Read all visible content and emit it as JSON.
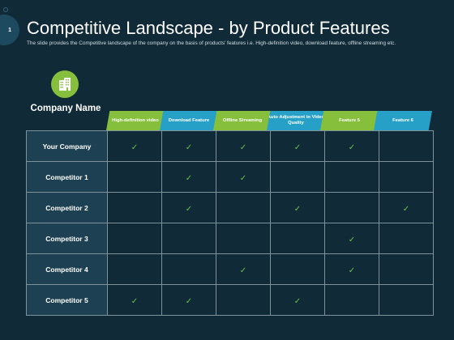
{
  "slide": {
    "number": "1",
    "title": "Competitive Landscape - by Product Features",
    "subtitle": "The slide provides the Competitive landscape of the company on the basis of products' features i.e. High-definition video, download feature, offline streaming etc."
  },
  "table": {
    "company_heading": "Company Name",
    "company_icon": "building-icon",
    "check_glyph": "✓",
    "features": [
      {
        "label": "High-definition video",
        "color": "#86bf3b"
      },
      {
        "label": "Download Feature",
        "color": "#27a0c8"
      },
      {
        "label": "Offline Streaming",
        "color": "#86bf3b"
      },
      {
        "label": "Auto Adjustment in Video Quality",
        "color": "#27a0c8"
      },
      {
        "label": "Feature 5",
        "color": "#86bf3b"
      },
      {
        "label": "Feature 6",
        "color": "#27a0c8"
      }
    ],
    "rows": [
      {
        "company": "Your Company",
        "checks": [
          true,
          true,
          true,
          true,
          true,
          false
        ]
      },
      {
        "company": "Competitor 1",
        "checks": [
          false,
          true,
          true,
          false,
          false,
          false
        ]
      },
      {
        "company": "Competitor 2",
        "checks": [
          false,
          true,
          false,
          true,
          false,
          true
        ]
      },
      {
        "company": "Competitor 3",
        "checks": [
          false,
          false,
          false,
          false,
          true,
          false
        ]
      },
      {
        "company": "Competitor 4",
        "checks": [
          false,
          false,
          true,
          false,
          true,
          false
        ]
      },
      {
        "company": "Competitor 5",
        "checks": [
          true,
          true,
          false,
          true,
          false,
          false
        ]
      }
    ]
  },
  "colors": {
    "background": "#102a38",
    "green": "#86bf3b",
    "blue": "#27a0c8",
    "check": "#6cc24a",
    "row_label_bg": "#1d4153"
  }
}
